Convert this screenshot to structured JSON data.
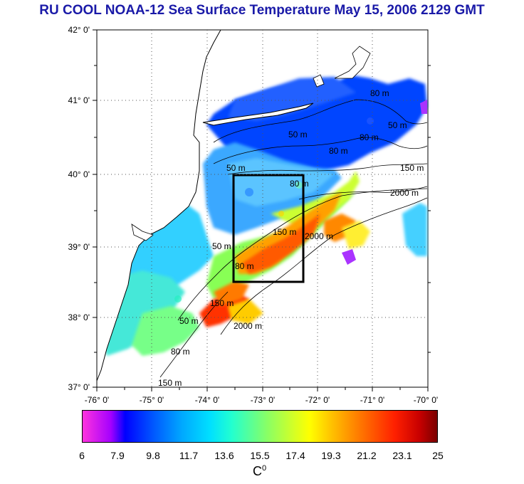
{
  "title": "RU COOL  NOAA-12 Sea Surface Temperature May 15, 2006 2129 GMT",
  "map": {
    "lat_labels": [
      "42° 0'",
      "41° 0'",
      "40° 0'",
      "39° 0'",
      "38° 0'",
      "37° 0'"
    ],
    "lon_labels": [
      "-76° 0'",
      "-75° 0'",
      "-74° 0'",
      "-73° 0'",
      "-72° 0'",
      "-71° 0'",
      "-70° 0'"
    ],
    "isobath_labels": [
      "50 m",
      "50 m",
      "80 m",
      "80 m",
      "150 m",
      "2000 m",
      "50 m",
      "80 m",
      "150 m",
      "2000 m",
      "80 m",
      "50 m",
      "80 m",
      "150 m",
      "2000 m",
      "50 m",
      "80 m",
      "150 m"
    ],
    "colors": {
      "cold": "#0044ff",
      "cool": "#33b7ff",
      "mid": "#66ff99",
      "warm": "#ff9900",
      "hot": "#ff2a00",
      "land": "#ffffff",
      "box": "#000000"
    }
  },
  "colorbar": {
    "ticks": [
      "6",
      "7.9",
      "9.8",
      "11.7",
      "13.6",
      "15.5",
      "17.4",
      "19.3",
      "21.2",
      "23.1",
      "25"
    ],
    "unit": "C",
    "unit_sup": "0"
  }
}
